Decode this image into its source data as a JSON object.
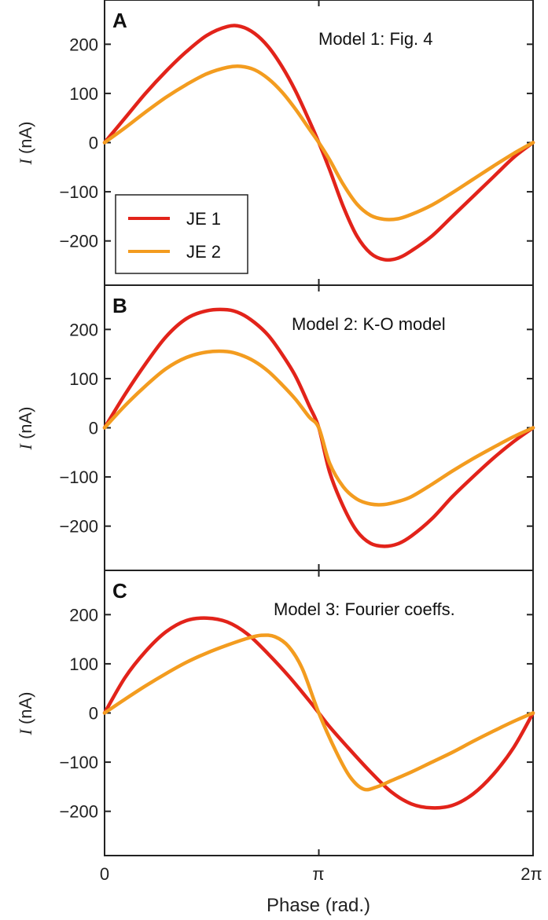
{
  "colors": {
    "je1": "#e2231a",
    "je2": "#f39c1f",
    "axis": "#222222"
  },
  "shared": {
    "xlabel": "Phase (rad.)",
    "xticks": [
      "0",
      "π",
      "2π"
    ],
    "ylabel_var": "I",
    "ylabel_unit": " (nA)",
    "yticks": [
      "200",
      "100",
      "0",
      "−100",
      "−200"
    ],
    "ytick_values": [
      200,
      100,
      0,
      -100,
      -200
    ],
    "xtick_values": [
      0,
      3.14159,
      6.28318
    ],
    "ylim": [
      -290,
      290
    ],
    "xlim": [
      0,
      6.28318
    ],
    "legend": {
      "placement": "lower-left of panel A",
      "entries": [
        "JE 1",
        "JE 2"
      ]
    }
  },
  "chart_data": [
    {
      "type": "line",
      "panel": "A",
      "title": "Model 1: Fig. 4",
      "xlabel": "Phase (rad.)",
      "ylabel": "I (nA)",
      "xlim": [
        0,
        6.28318
      ],
      "ylim": [
        -290,
        290
      ],
      "series": [
        {
          "name": "JE 1",
          "color": "#e2231a",
          "x": [
            0,
            0.3,
            0.6,
            0.9,
            1.2,
            1.5,
            1.8,
            2.0,
            2.2,
            2.4,
            2.6,
            2.8,
            3.0,
            3.1416,
            3.3,
            3.5,
            3.7,
            3.9,
            4.1,
            4.3,
            4.5,
            4.8,
            5.1,
            5.4,
            5.7,
            6.0,
            6.2832
          ],
          "y": [
            0,
            50,
            100,
            145,
            185,
            218,
            236,
            236,
            222,
            195,
            155,
            105,
            45,
            0,
            -55,
            -130,
            -190,
            -225,
            -238,
            -235,
            -220,
            -190,
            -150,
            -110,
            -70,
            -30,
            0
          ]
        },
        {
          "name": "JE 2",
          "color": "#f39c1f",
          "x": [
            0,
            0.3,
            0.6,
            0.9,
            1.2,
            1.5,
            1.8,
            2.0,
            2.2,
            2.4,
            2.6,
            2.8,
            3.0,
            3.1416,
            3.3,
            3.5,
            3.7,
            3.9,
            4.1,
            4.3,
            4.5,
            4.8,
            5.1,
            5.4,
            5.7,
            6.0,
            6.2832
          ],
          "y": [
            0,
            30,
            62,
            92,
            118,
            140,
            153,
            155,
            148,
            130,
            103,
            68,
            28,
            0,
            -35,
            -85,
            -125,
            -148,
            -156,
            -155,
            -146,
            -127,
            -102,
            -75,
            -48,
            -22,
            0
          ]
        }
      ]
    },
    {
      "type": "line",
      "panel": "B",
      "title": "Model 2: K-O model",
      "xlabel": "Phase (rad.)",
      "ylabel": "I (nA)",
      "xlim": [
        0,
        6.28318
      ],
      "ylim": [
        -290,
        290
      ],
      "series": [
        {
          "name": "JE 1",
          "color": "#e2231a",
          "x": [
            0,
            0.3,
            0.6,
            0.9,
            1.2,
            1.5,
            1.8,
            2.0,
            2.2,
            2.4,
            2.6,
            2.8,
            3.0,
            3.1416,
            3.3,
            3.5,
            3.7,
            3.9,
            4.1,
            4.3,
            4.5,
            4.8,
            5.1,
            5.4,
            5.7,
            6.0,
            6.2832
          ],
          "y": [
            0,
            68,
            130,
            185,
            222,
            238,
            240,
            232,
            214,
            188,
            150,
            105,
            45,
            0,
            -90,
            -160,
            -210,
            -235,
            -241,
            -236,
            -220,
            -185,
            -140,
            -100,
            -62,
            -28,
            0
          ]
        },
        {
          "name": "JE 2",
          "color": "#f39c1f",
          "x": [
            0,
            0.3,
            0.6,
            0.9,
            1.2,
            1.5,
            1.8,
            2.0,
            2.2,
            2.4,
            2.6,
            2.8,
            3.0,
            3.1416,
            3.3,
            3.5,
            3.7,
            3.9,
            4.1,
            4.3,
            4.5,
            4.8,
            5.1,
            5.4,
            5.7,
            6.0,
            6.2832
          ],
          "y": [
            0,
            45,
            85,
            120,
            143,
            154,
            155,
            148,
            135,
            115,
            88,
            58,
            22,
            0,
            -72,
            -120,
            -145,
            -155,
            -156,
            -150,
            -140,
            -115,
            -88,
            -63,
            -40,
            -18,
            0
          ]
        }
      ]
    },
    {
      "type": "line",
      "panel": "C",
      "title": "Model 3: Fourier coeffs.",
      "xlabel": "Phase (rad.)",
      "ylabel": "I (nA)",
      "xlim": [
        0,
        6.28318
      ],
      "ylim": [
        -290,
        290
      ],
      "series": [
        {
          "name": "JE 1",
          "color": "#e2231a",
          "x": [
            0,
            0.3,
            0.6,
            0.9,
            1.2,
            1.5,
            1.8,
            2.1,
            2.4,
            2.7,
            3.0,
            3.1416,
            3.3,
            3.6,
            3.9,
            4.2,
            4.5,
            4.8,
            5.1,
            5.4,
            5.7,
            6.0,
            6.2832
          ],
          "y": [
            0,
            72,
            125,
            165,
            188,
            193,
            185,
            160,
            120,
            75,
            25,
            0,
            -28,
            -75,
            -120,
            -160,
            -185,
            -193,
            -188,
            -165,
            -125,
            -70,
            0
          ]
        },
        {
          "name": "JE 2",
          "color": "#f39c1f",
          "x": [
            0,
            0.3,
            0.6,
            0.9,
            1.2,
            1.5,
            1.8,
            2.1,
            2.3,
            2.5,
            2.7,
            2.9,
            3.1416,
            3.4,
            3.6,
            3.8,
            4.0,
            4.2,
            4.5,
            4.8,
            5.1,
            5.4,
            5.7,
            6.0,
            6.2832
          ],
          "y": [
            0,
            28,
            55,
            80,
            103,
            122,
            138,
            152,
            158,
            155,
            135,
            90,
            0,
            -80,
            -130,
            -155,
            -150,
            -138,
            -120,
            -100,
            -80,
            -58,
            -37,
            -17,
            0
          ]
        }
      ]
    }
  ]
}
